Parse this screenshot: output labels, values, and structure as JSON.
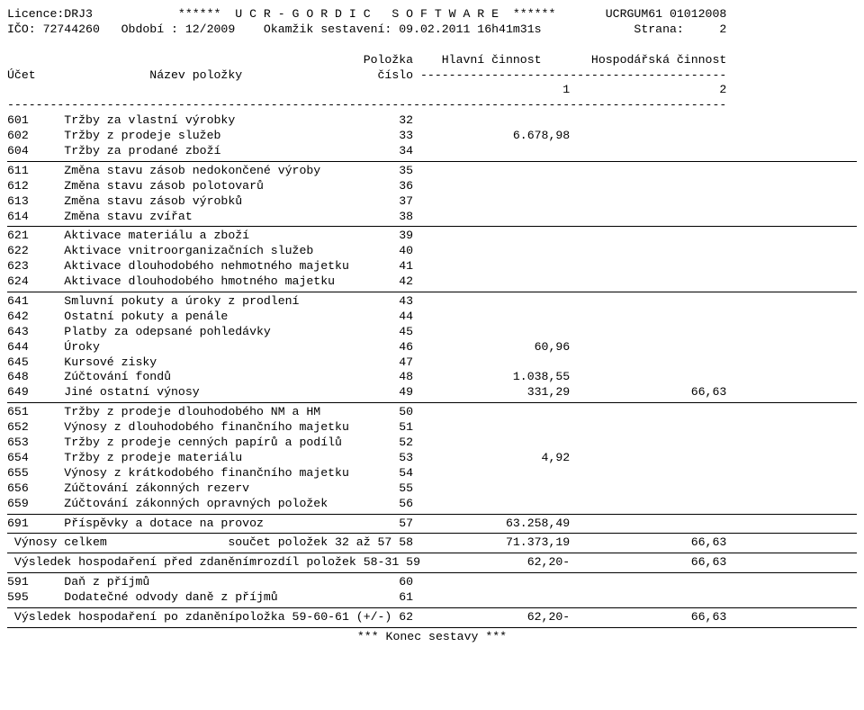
{
  "layout": {
    "cols": {
      "ucet_start": 0,
      "nazev_start": 8,
      "polozka_end": 57,
      "hlavni_end": 79,
      "hosp_end": 101,
      "total_width": 101
    }
  },
  "header": {
    "line1_left": "Licence:DRJ3",
    "line1_center": "******  U C R - G O R D I C   S O F T W A R E  ******",
    "line1_right": "UCRGUM61 01012008",
    "line2_left": "IČO: 72744260   Období : 12/2009",
    "line2_center": "Okamžik sestavení: 09.02.2011 16h41m31s",
    "line2_right": "Strana:     2",
    "colhead_top": {
      "polozka": "Položka",
      "hlavni": "Hlavní činnost",
      "hosp": "Hospodářská činnost"
    },
    "colhead_row": {
      "ucet": "Účet",
      "nazev": "Název položky",
      "polozka": "číslo",
      "dashfill": "-"
    },
    "colnums": {
      "c1": "1",
      "c2": "2"
    }
  },
  "groups": [
    [
      {
        "ucet": "601",
        "nazev": "Tržby za vlastní výrobky",
        "polozka": "32",
        "hlavni": "",
        "hosp": ""
      },
      {
        "ucet": "602",
        "nazev": "Tržby z prodeje služeb",
        "polozka": "33",
        "hlavni": "6.678,98",
        "hosp": ""
      },
      {
        "ucet": "604",
        "nazev": "Tržby za prodané zboží",
        "polozka": "34",
        "hlavni": "",
        "hosp": ""
      }
    ],
    [
      {
        "ucet": "611",
        "nazev": "Změna stavu zásob nedokončené výroby",
        "polozka": "35",
        "hlavni": "",
        "hosp": ""
      },
      {
        "ucet": "612",
        "nazev": "Změna stavu zásob polotovarů",
        "polozka": "36",
        "hlavni": "",
        "hosp": ""
      },
      {
        "ucet": "613",
        "nazev": "Změna stavu zásob výrobků",
        "polozka": "37",
        "hlavni": "",
        "hosp": ""
      },
      {
        "ucet": "614",
        "nazev": "Změna stavu zvířat",
        "polozka": "38",
        "hlavni": "",
        "hosp": ""
      }
    ],
    [
      {
        "ucet": "621",
        "nazev": "Aktivace materiálu a zboží",
        "polozka": "39",
        "hlavni": "",
        "hosp": ""
      },
      {
        "ucet": "622",
        "nazev": "Aktivace vnitroorganizačních služeb",
        "polozka": "40",
        "hlavni": "",
        "hosp": ""
      },
      {
        "ucet": "623",
        "nazev": "Aktivace dlouhodobého nehmotného majetku",
        "polozka": "41",
        "hlavni": "",
        "hosp": ""
      },
      {
        "ucet": "624",
        "nazev": "Aktivace dlouhodobého hmotného majetku",
        "polozka": "42",
        "hlavni": "",
        "hosp": ""
      }
    ],
    [
      {
        "ucet": "641",
        "nazev": "Smluvní pokuty a úroky z prodlení",
        "polozka": "43",
        "hlavni": "",
        "hosp": ""
      },
      {
        "ucet": "642",
        "nazev": "Ostatní pokuty a penále",
        "polozka": "44",
        "hlavni": "",
        "hosp": ""
      },
      {
        "ucet": "643",
        "nazev": "Platby za odepsané pohledávky",
        "polozka": "45",
        "hlavni": "",
        "hosp": ""
      },
      {
        "ucet": "644",
        "nazev": "Úroky",
        "polozka": "46",
        "hlavni": "60,96",
        "hosp": ""
      },
      {
        "ucet": "645",
        "nazev": "Kursové zisky",
        "polozka": "47",
        "hlavni": "",
        "hosp": ""
      },
      {
        "ucet": "648",
        "nazev": "Zúčtování fondů",
        "polozka": "48",
        "hlavni": "1.038,55",
        "hosp": ""
      },
      {
        "ucet": "649",
        "nazev": "Jiné ostatní výnosy",
        "polozka": "49",
        "hlavni": "331,29",
        "hosp": "66,63"
      }
    ],
    [
      {
        "ucet": "651",
        "nazev": "Tržby z prodeje dlouhodobého NM a HM",
        "polozka": "50",
        "hlavni": "",
        "hosp": ""
      },
      {
        "ucet": "652",
        "nazev": "Výnosy z dlouhodobého finančního majetku",
        "polozka": "51",
        "hlavni": "",
        "hosp": ""
      },
      {
        "ucet": "653",
        "nazev": "Tržby z prodeje cenných papírů a podílů",
        "polozka": "52",
        "hlavni": "",
        "hosp": ""
      },
      {
        "ucet": "654",
        "nazev": "Tržby z prodeje materiálu",
        "polozka": "53",
        "hlavni": "4,92",
        "hosp": ""
      },
      {
        "ucet": "655",
        "nazev": "Výnosy z krátkodobého finančního majetku",
        "polozka": "54",
        "hlavni": "",
        "hosp": ""
      },
      {
        "ucet": "656",
        "nazev": "Zúčtování zákonných rezerv",
        "polozka": "55",
        "hlavni": "",
        "hosp": ""
      },
      {
        "ucet": "659",
        "nazev": "Zúčtování zákonných opravných položek",
        "polozka": "56",
        "hlavni": "",
        "hosp": ""
      }
    ],
    [
      {
        "ucet": "691",
        "nazev": "Příspěvky a dotace na provoz",
        "polozka": "57",
        "hlavni": "63.258,49",
        "hosp": ""
      }
    ]
  ],
  "totals": [
    {
      "label_left": " Výnosy celkem",
      "label_right": "součet položek 32 až 57",
      "polozka": "58",
      "hlavni": "71.373,19",
      "hosp": "66,63"
    },
    {
      "label_left": " Výsledek hospodaření před zdaněním",
      "label_right": "rozdíl položek 58-31",
      "polozka": "59",
      "hlavni": "62,20-",
      "hosp": "66,63"
    }
  ],
  "tax_group": [
    {
      "ucet": "591",
      "nazev": "Daň z příjmů",
      "polozka": "60",
      "hlavni": "",
      "hosp": ""
    },
    {
      "ucet": "595",
      "nazev": "Dodatečné odvody daně z příjmů",
      "polozka": "61",
      "hlavni": "",
      "hosp": ""
    }
  ],
  "final_total": {
    "label_left": " Výsledek hospodaření po zdanění",
    "label_right": "položka 59-60-61 (+/-)",
    "polozka": "62",
    "hlavni": "62,20-",
    "hosp": "66,63"
  },
  "footer": "*** Konec sestavy ***"
}
